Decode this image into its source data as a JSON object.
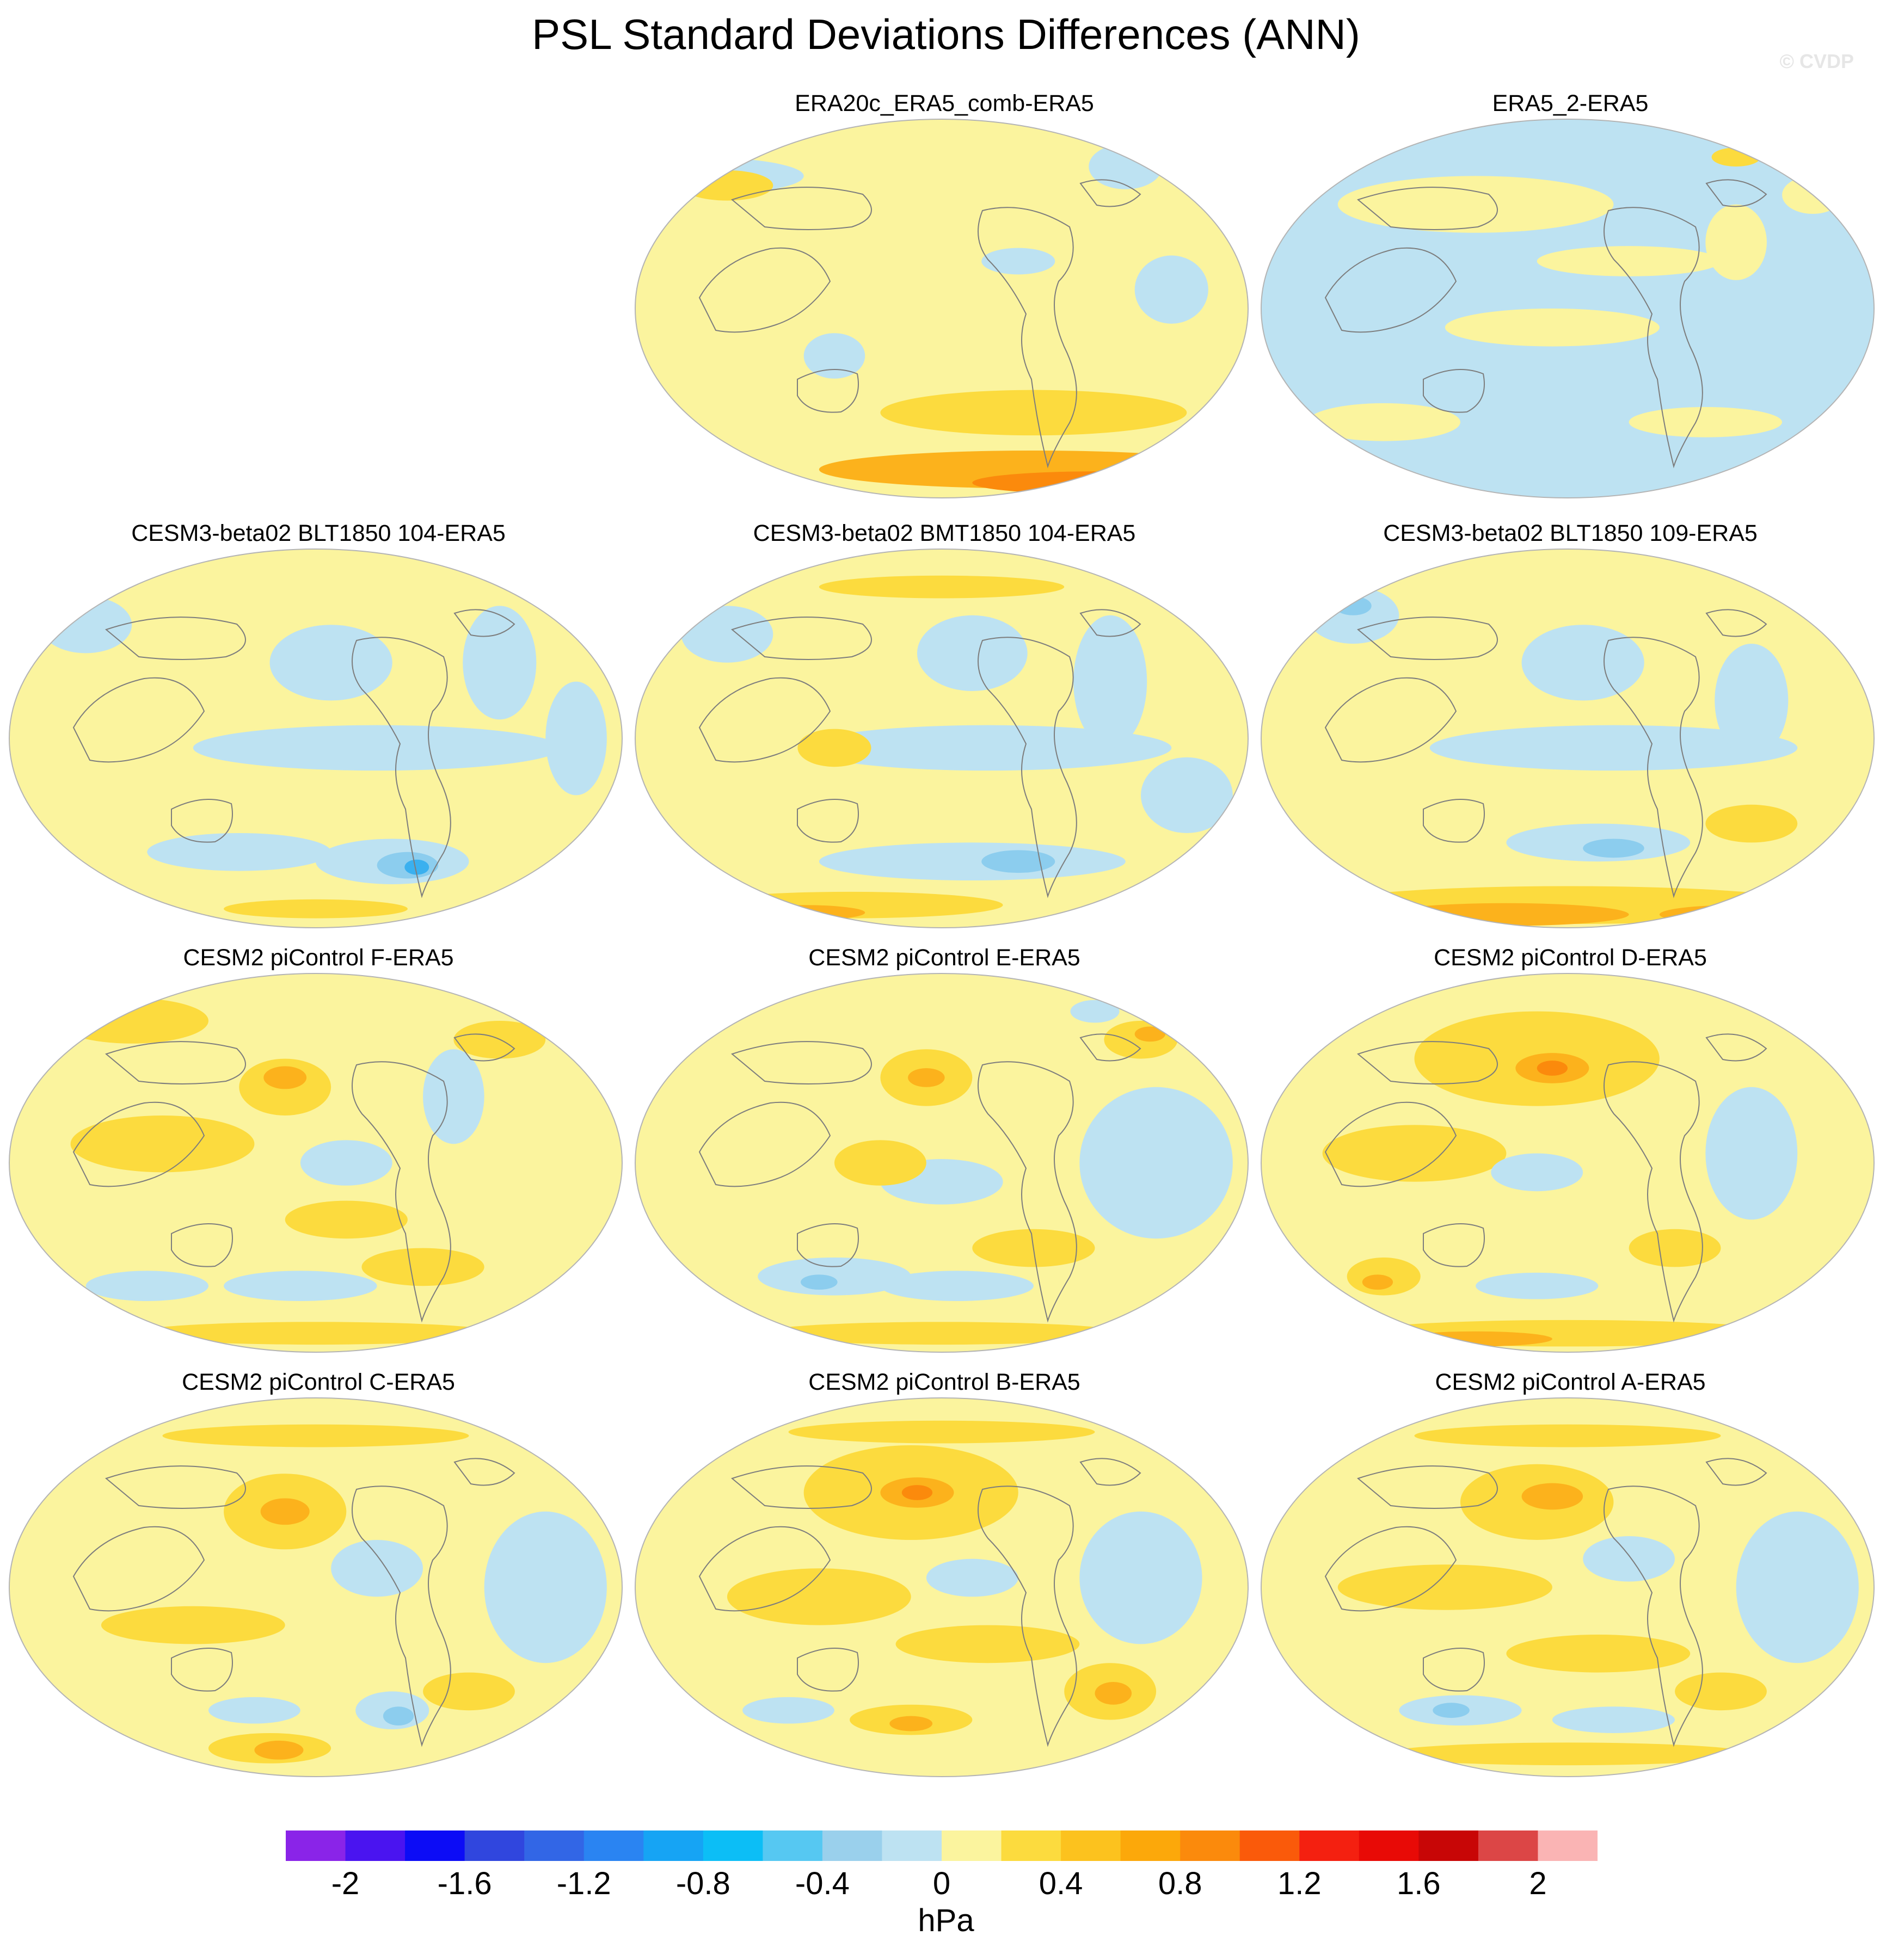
{
  "figure": {
    "title": "PSL Standard Deviations Differences (ANN)",
    "watermark": "© CVDP"
  },
  "panels": [
    {
      "id": "era20c",
      "title": "ERA20c_ERA5_comb-ERA5",
      "base": "yellow",
      "blobs": [
        [
          "blue",
          -0.8,
          0.7,
          0.35,
          0.1
        ],
        [
          "blue",
          0.25,
          0.25,
          0.12,
          0.07
        ],
        [
          "blue",
          -0.35,
          -0.25,
          0.1,
          0.12
        ],
        [
          "gold",
          -0.7,
          0.65,
          0.15,
          0.08
        ],
        [
          "gold",
          0.3,
          -0.55,
          0.5,
          0.12
        ],
        [
          "orange",
          0.3,
          -0.85,
          0.7,
          0.1
        ],
        [
          "dkorange",
          0.5,
          -0.92,
          0.4,
          0.06
        ],
        [
          "blue",
          0.6,
          0.75,
          0.12,
          0.12
        ],
        [
          "blue",
          0.75,
          0.1,
          0.12,
          0.18
        ]
      ]
    },
    {
      "id": "era5_2",
      "title": "ERA5_2-ERA5",
      "base": "blue",
      "blobs": [
        [
          "yellow",
          -0.3,
          0.55,
          0.45,
          0.15
        ],
        [
          "yellow",
          0.2,
          0.25,
          0.3,
          0.08
        ],
        [
          "yellow",
          -0.05,
          -0.1,
          0.35,
          0.1
        ],
        [
          "yellow",
          0.55,
          0.35,
          0.1,
          0.2
        ],
        [
          "yellow",
          0.45,
          -0.6,
          0.25,
          0.08
        ],
        [
          "yellow",
          -0.6,
          -0.6,
          0.25,
          0.1
        ],
        [
          "yellow",
          0.8,
          0.6,
          0.1,
          0.1
        ],
        [
          "gold",
          0.55,
          0.8,
          0.08,
          0.05
        ]
      ]
    },
    {
      "id": "blt104",
      "title": "CESM3-beta02 BLT1850 104-ERA5",
      "base": "yellow",
      "blobs": [
        [
          "blue",
          0.2,
          -0.05,
          0.6,
          0.12
        ],
        [
          "blue",
          0.05,
          0.4,
          0.2,
          0.2
        ],
        [
          "blue",
          0.6,
          0.4,
          0.12,
          0.3
        ],
        [
          "blue",
          -0.75,
          0.6,
          0.15,
          0.15
        ],
        [
          "blue",
          -0.25,
          -0.6,
          0.3,
          0.1
        ],
        [
          "blue",
          0.25,
          -0.65,
          0.25,
          0.12
        ],
        [
          "midblue",
          0.3,
          -0.67,
          0.1,
          0.07
        ],
        [
          "dkblue",
          0.33,
          -0.68,
          0.04,
          0.04
        ],
        [
          "gold",
          -0.7,
          -0.9,
          0.2,
          0.06
        ],
        [
          "orange",
          -0.65,
          -0.92,
          0.1,
          0.04
        ],
        [
          "gold",
          0.0,
          -0.9,
          0.3,
          0.05
        ],
        [
          "blue",
          0.85,
          0.0,
          0.1,
          0.3
        ]
      ]
    },
    {
      "id": "bmt104",
      "title": "CESM3-beta02 BMT1850 104-ERA5",
      "base": "yellow",
      "blobs": [
        [
          "blue",
          0.15,
          -0.05,
          0.6,
          0.12
        ],
        [
          "blue",
          0.1,
          0.45,
          0.18,
          0.2
        ],
        [
          "blue",
          0.55,
          0.3,
          0.12,
          0.35
        ],
        [
          "blue",
          -0.7,
          0.55,
          0.15,
          0.15
        ],
        [
          "blue",
          0.1,
          -0.65,
          0.5,
          0.1
        ],
        [
          "midblue",
          0.25,
          -0.65,
          0.12,
          0.06
        ],
        [
          "gold",
          -0.3,
          -0.88,
          0.5,
          0.07
        ],
        [
          "orange",
          -0.45,
          -0.92,
          0.2,
          0.04
        ],
        [
          "gold",
          -0.35,
          -0.05,
          0.12,
          0.1
        ],
        [
          "blue",
          0.8,
          -0.3,
          0.15,
          0.2
        ],
        [
          "gold",
          0.0,
          0.8,
          0.4,
          0.06
        ]
      ]
    },
    {
      "id": "blt109",
      "title": "CESM3-beta02 BLT1850 109-ERA5",
      "base": "yellow",
      "blobs": [
        [
          "blue",
          0.15,
          -0.05,
          0.6,
          0.12
        ],
        [
          "blue",
          0.05,
          0.4,
          0.2,
          0.2
        ],
        [
          "blue",
          0.6,
          0.2,
          0.12,
          0.3
        ],
        [
          "blue",
          -0.7,
          0.65,
          0.15,
          0.15
        ],
        [
          "midblue",
          -0.7,
          0.7,
          0.06,
          0.05
        ],
        [
          "blue",
          0.1,
          -0.55,
          0.3,
          0.1
        ],
        [
          "midblue",
          0.15,
          -0.58,
          0.1,
          0.05
        ],
        [
          "gold",
          0.0,
          -0.88,
          0.8,
          0.1
        ],
        [
          "orange",
          -0.2,
          -0.93,
          0.4,
          0.06
        ],
        [
          "red",
          -0.55,
          -0.96,
          0.1,
          0.03
        ],
        [
          "orange",
          0.55,
          -0.93,
          0.25,
          0.05
        ],
        [
          "gold",
          0.6,
          -0.45,
          0.15,
          0.1
        ]
      ]
    },
    {
      "id": "pic_f",
      "title": "CESM2 piControl F-ERA5",
      "base": "yellow",
      "blobs": [
        [
          "gold",
          -0.6,
          0.75,
          0.25,
          0.12
        ],
        [
          "gold",
          -0.1,
          0.4,
          0.15,
          0.15
        ],
        [
          "orange",
          -0.1,
          0.45,
          0.07,
          0.06
        ],
        [
          "gold",
          -0.5,
          0.1,
          0.3,
          0.15
        ],
        [
          "gold",
          0.1,
          -0.3,
          0.2,
          0.1
        ],
        [
          "blue",
          0.1,
          0.0,
          0.15,
          0.12
        ],
        [
          "blue",
          0.45,
          0.35,
          0.1,
          0.25
        ],
        [
          "blue",
          -0.05,
          -0.65,
          0.25,
          0.08
        ],
        [
          "blue",
          -0.55,
          -0.65,
          0.2,
          0.08
        ],
        [
          "gold",
          0.35,
          -0.55,
          0.2,
          0.1
        ],
        [
          "gold",
          0.0,
          -0.9,
          0.6,
          0.06
        ],
        [
          "gold",
          0.6,
          0.65,
          0.15,
          0.1
        ]
      ]
    },
    {
      "id": "pic_e",
      "title": "CESM2 piControl E-ERA5",
      "base": "yellow",
      "blobs": [
        [
          "gold",
          -0.05,
          0.45,
          0.15,
          0.15
        ],
        [
          "orange",
          -0.05,
          0.45,
          0.06,
          0.05
        ],
        [
          "blue",
          0.7,
          0.0,
          0.25,
          0.4
        ],
        [
          "blue",
          0.0,
          -0.1,
          0.2,
          0.12
        ],
        [
          "blue",
          -0.35,
          -0.6,
          0.25,
          0.1
        ],
        [
          "midblue",
          -0.4,
          -0.63,
          0.06,
          0.04
        ],
        [
          "blue",
          0.05,
          -0.65,
          0.25,
          0.08
        ],
        [
          "gold",
          0.65,
          0.65,
          0.12,
          0.1
        ],
        [
          "orange",
          0.68,
          0.68,
          0.05,
          0.04
        ],
        [
          "gold",
          -0.2,
          0.0,
          0.15,
          0.12
        ],
        [
          "gold",
          0.3,
          -0.45,
          0.2,
          0.1
        ],
        [
          "gold",
          0.0,
          -0.9,
          0.6,
          0.06
        ],
        [
          "blue",
          0.5,
          0.8,
          0.08,
          0.06
        ]
      ]
    },
    {
      "id": "pic_d",
      "title": "CESM2 piControl D-ERA5",
      "base": "yellow",
      "blobs": [
        [
          "gold",
          -0.1,
          0.55,
          0.4,
          0.25
        ],
        [
          "orange",
          -0.05,
          0.5,
          0.12,
          0.08
        ],
        [
          "dkorange",
          -0.05,
          0.5,
          0.05,
          0.04
        ],
        [
          "blue",
          0.6,
          0.05,
          0.15,
          0.35
        ],
        [
          "blue",
          -0.1,
          -0.65,
          0.2,
          0.07
        ],
        [
          "gold",
          -0.5,
          0.05,
          0.3,
          0.15
        ],
        [
          "gold",
          -0.6,
          -0.6,
          0.12,
          0.1
        ],
        [
          "orange",
          -0.62,
          -0.63,
          0.05,
          0.04
        ],
        [
          "gold",
          0.0,
          -0.9,
          0.7,
          0.07
        ],
        [
          "orange",
          -0.3,
          -0.93,
          0.25,
          0.04
        ],
        [
          "gold",
          0.35,
          -0.45,
          0.15,
          0.1
        ],
        [
          "blue",
          -0.1,
          -0.05,
          0.15,
          0.1
        ]
      ]
    },
    {
      "id": "pic_c",
      "title": "CESM2 piControl C-ERA5",
      "base": "yellow",
      "blobs": [
        [
          "gold",
          -0.1,
          0.4,
          0.2,
          0.2
        ],
        [
          "orange",
          -0.1,
          0.4,
          0.08,
          0.07
        ],
        [
          "blue",
          0.75,
          0.0,
          0.2,
          0.4
        ],
        [
          "blue",
          0.2,
          0.1,
          0.15,
          0.15
        ],
        [
          "blue",
          0.25,
          -0.65,
          0.12,
          0.1
        ],
        [
          "midblue",
          0.27,
          -0.68,
          0.05,
          0.05
        ],
        [
          "blue",
          -0.2,
          -0.65,
          0.15,
          0.07
        ],
        [
          "gold",
          -0.15,
          -0.85,
          0.2,
          0.08
        ],
        [
          "orange",
          -0.12,
          -0.86,
          0.08,
          0.05
        ],
        [
          "gold",
          0.5,
          -0.55,
          0.15,
          0.1
        ],
        [
          "gold",
          -0.4,
          -0.2,
          0.3,
          0.1
        ],
        [
          "gold",
          0.0,
          0.8,
          0.5,
          0.06
        ]
      ]
    },
    {
      "id": "pic_b",
      "title": "CESM2 piControl B-ERA5",
      "base": "yellow",
      "blobs": [
        [
          "gold",
          -0.1,
          0.5,
          0.35,
          0.25
        ],
        [
          "orange",
          -0.08,
          0.5,
          0.12,
          0.08
        ],
        [
          "dkorange",
          -0.08,
          0.5,
          0.05,
          0.04
        ],
        [
          "blue",
          0.65,
          0.05,
          0.2,
          0.35
        ],
        [
          "gold",
          -0.4,
          -0.05,
          0.3,
          0.15
        ],
        [
          "gold",
          0.15,
          -0.3,
          0.3,
          0.1
        ],
        [
          "blue",
          0.1,
          0.05,
          0.15,
          0.1
        ],
        [
          "gold",
          0.55,
          -0.55,
          0.15,
          0.15
        ],
        [
          "orange",
          0.56,
          -0.56,
          0.06,
          0.06
        ],
        [
          "gold",
          -0.1,
          -0.7,
          0.2,
          0.08
        ],
        [
          "orange",
          -0.1,
          -0.72,
          0.07,
          0.04
        ],
        [
          "blue",
          -0.5,
          -0.65,
          0.15,
          0.07
        ],
        [
          "gold",
          0.0,
          0.82,
          0.5,
          0.06
        ]
      ]
    },
    {
      "id": "pic_a",
      "title": "CESM2 piControl A-ERA5",
      "base": "yellow",
      "blobs": [
        [
          "gold",
          -0.1,
          0.45,
          0.25,
          0.2
        ],
        [
          "orange",
          -0.05,
          0.48,
          0.1,
          0.07
        ],
        [
          "blue",
          0.75,
          0.0,
          0.2,
          0.4
        ],
        [
          "blue",
          0.2,
          0.15,
          0.15,
          0.12
        ],
        [
          "blue",
          -0.35,
          -0.65,
          0.2,
          0.08
        ],
        [
          "midblue",
          -0.38,
          -0.65,
          0.06,
          0.04
        ],
        [
          "blue",
          0.15,
          -0.7,
          0.2,
          0.07
        ],
        [
          "gold",
          -0.4,
          0.0,
          0.35,
          0.12
        ],
        [
          "gold",
          0.1,
          -0.35,
          0.3,
          0.1
        ],
        [
          "gold",
          0.5,
          -0.55,
          0.15,
          0.1
        ],
        [
          "gold",
          0.0,
          -0.88,
          0.6,
          0.06
        ],
        [
          "gold",
          0.0,
          0.8,
          0.5,
          0.06
        ]
      ]
    }
  ],
  "palette": {
    "yellow": "#fbf49e",
    "gold": "#fcdb3e",
    "orange": "#fcb21c",
    "dkorange": "#fb8a0c",
    "red": "#f22010",
    "blue": "#bde2f2",
    "midblue": "#8ccdee",
    "dkblue": "#3ab0ef",
    "land_line": "#7d7d7d",
    "frame": "#b4b4b4"
  },
  "colorbar": {
    "colors": [
      "#8a24e8",
      "#4a14f0",
      "#0c0cf6",
      "#3046de",
      "#3266e6",
      "#2a84f2",
      "#16a4f4",
      "#0cbef6",
      "#56c8f2",
      "#9ad0ec",
      "#bde2f2",
      "#fbf49e",
      "#fcdb3e",
      "#fcc21e",
      "#fca80a",
      "#fb8a0c",
      "#fa5a0a",
      "#f42010",
      "#e80a06",
      "#c80606",
      "#dc4646",
      "#fab4b4"
    ],
    "ticks": [
      "-2",
      "-1.6",
      "-1.2",
      "-0.8",
      "-0.4",
      "0",
      "0.4",
      "0.8",
      "1.2",
      "1.6",
      "2"
    ],
    "units": "hPa"
  }
}
